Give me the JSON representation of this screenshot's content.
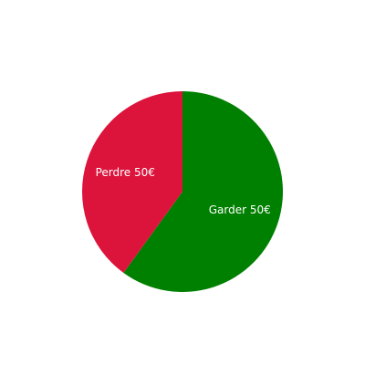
{
  "chart_data": {
    "type": "pie",
    "title": "",
    "start_angle_deg": 0,
    "direction": "clockwise",
    "slices": [
      {
        "label": "Garder 50€",
        "value": 0.6,
        "color": "#008000"
      },
      {
        "label": "Perdre 50€",
        "value": 0.4,
        "color": "#DC143C"
      }
    ]
  }
}
